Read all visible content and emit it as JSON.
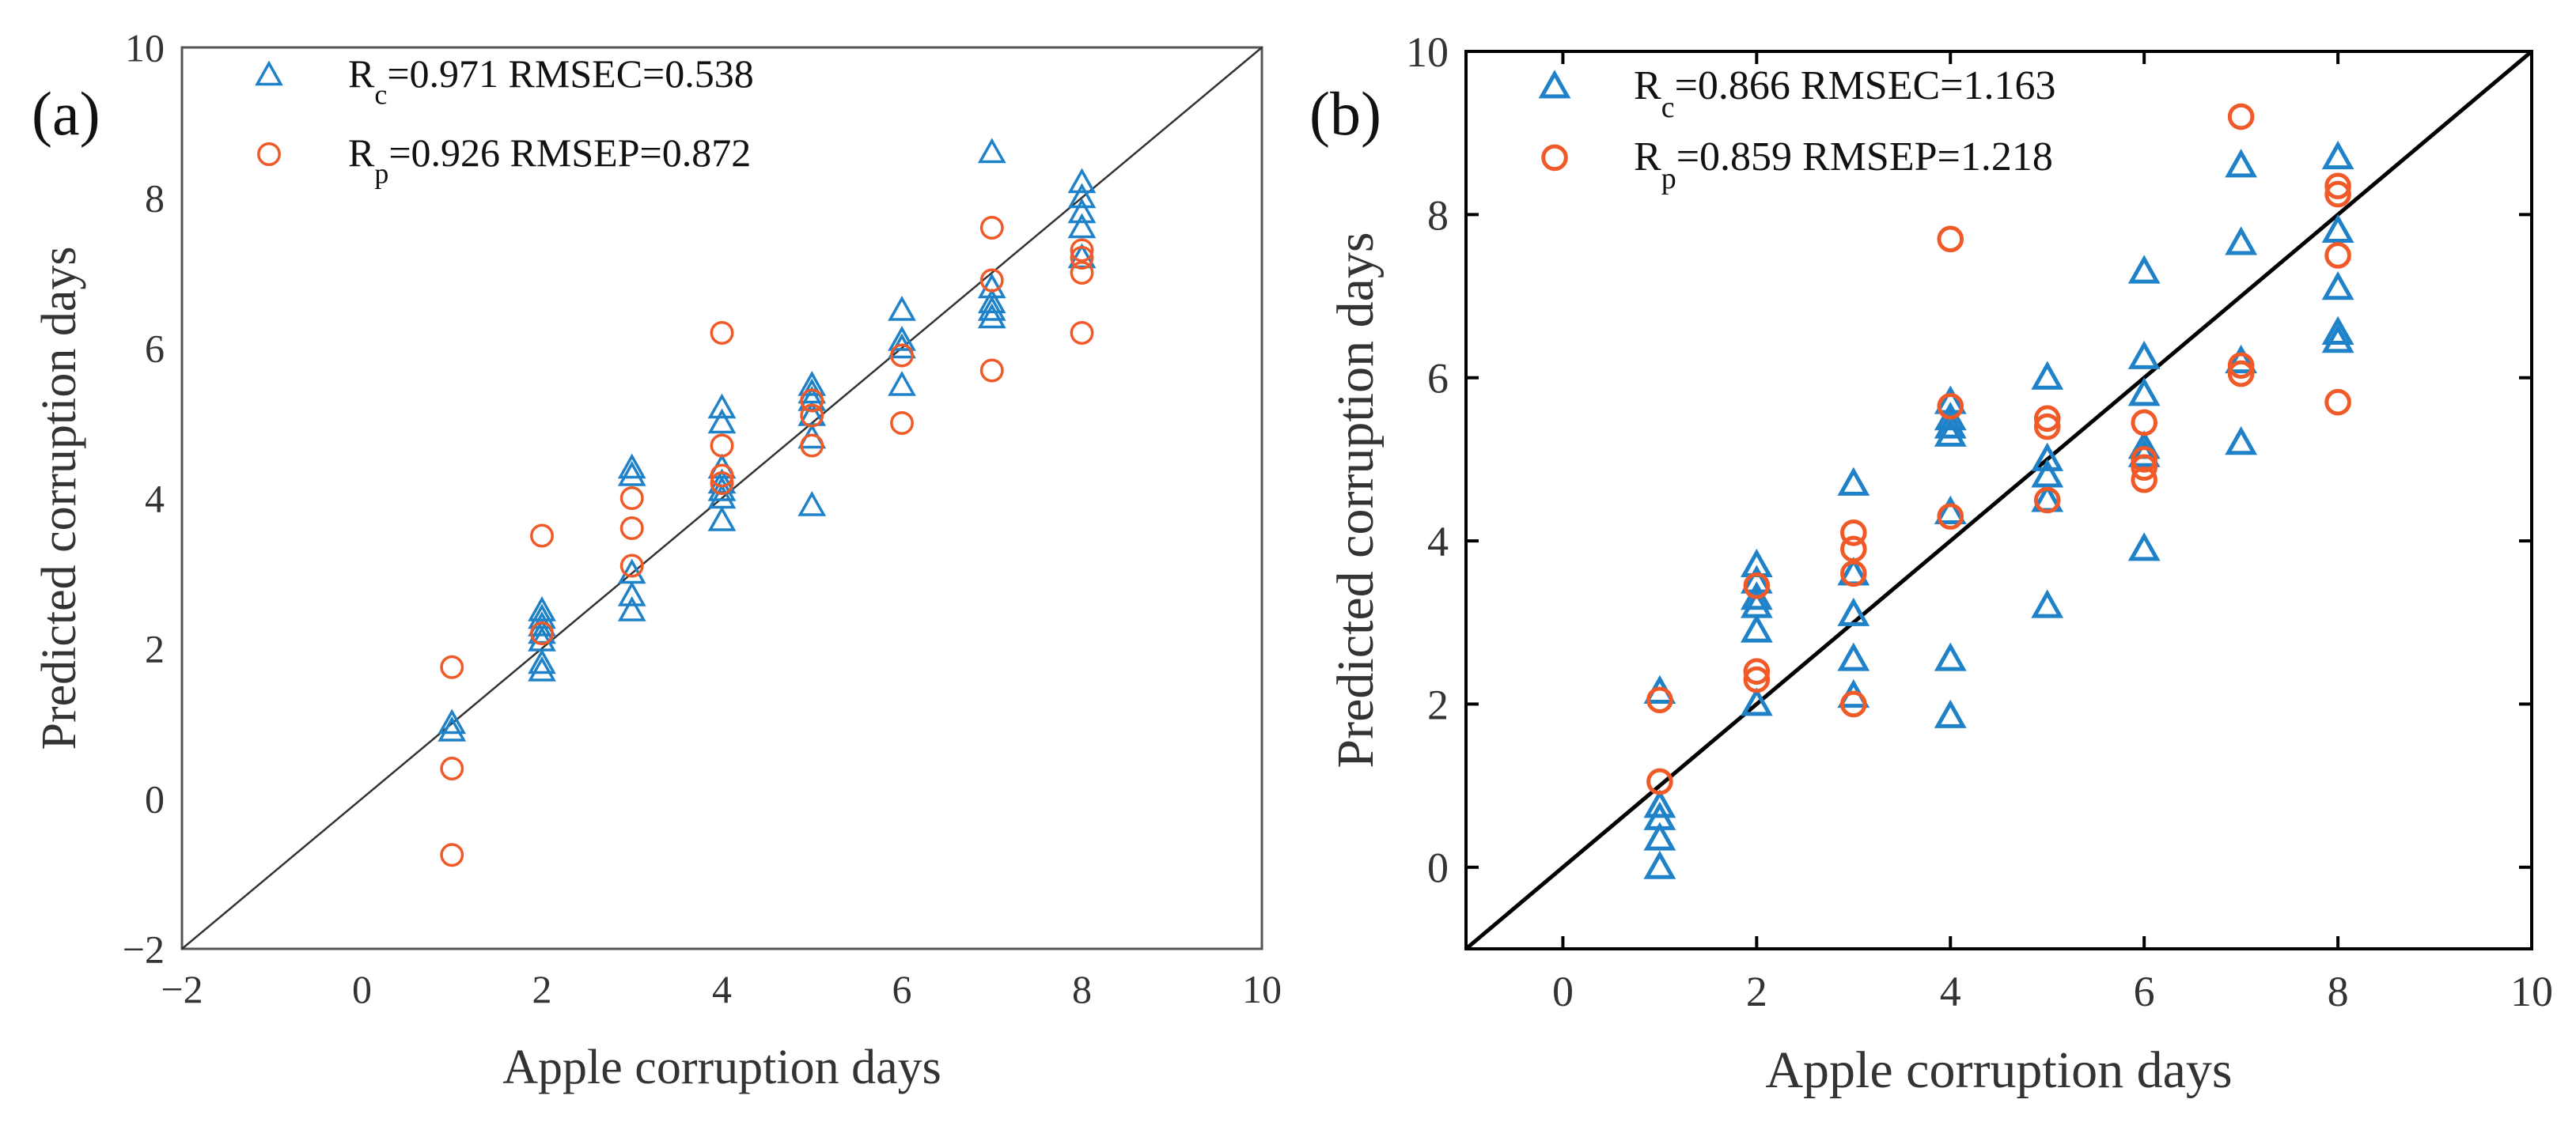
{
  "colors": {
    "calibration": "#1f82c8",
    "prediction": "#f05a28",
    "reference_line_a": "#333333",
    "reference_line_b": "#000000"
  },
  "chart_data": [
    {
      "type": "scatter",
      "panel_label": "(a)",
      "xlabel": "Apple corruption days",
      "ylabel": "Predicted corruption days",
      "xlim": [
        -2,
        10
      ],
      "ylim": [
        -2,
        10
      ],
      "xticks": [
        "−2",
        "0",
        "2",
        "4",
        "6",
        "8",
        "10"
      ],
      "yticks": [
        "−2",
        "0",
        "2",
        "4",
        "6",
        "8",
        "10"
      ],
      "reference_line": "y = x",
      "legend": [
        {
          "name": "calibration",
          "main": "R",
          "sub": "c",
          "rest": "=0.971 RMSEC=0.538",
          "marker": "triangle"
        },
        {
          "name": "prediction",
          "main": "R",
          "sub": "p",
          "rest": "=0.926 RMSEP=0.872",
          "marker": "circle"
        }
      ],
      "series": [
        {
          "name": "calibration",
          "marker": "triangle",
          "points": [
            [
              1,
              1.0
            ],
            [
              1,
              0.9
            ],
            [
              2,
              2.5
            ],
            [
              2,
              2.4
            ],
            [
              2,
              2.3
            ],
            [
              2,
              2.2
            ],
            [
              2,
              2.1
            ],
            [
              2,
              1.8
            ],
            [
              2,
              1.7
            ],
            [
              3,
              4.4
            ],
            [
              3,
              4.3
            ],
            [
              3,
              3.0
            ],
            [
              3,
              2.7
            ],
            [
              3,
              2.5
            ],
            [
              4,
              5.2
            ],
            [
              4,
              5.0
            ],
            [
              4,
              4.4
            ],
            [
              4,
              4.2
            ],
            [
              4,
              4.1
            ],
            [
              4,
              4.0
            ],
            [
              4,
              3.7
            ],
            [
              5,
              5.5
            ],
            [
              5,
              5.4
            ],
            [
              5,
              5.3
            ],
            [
              5,
              5.1
            ],
            [
              5,
              4.8
            ],
            [
              5,
              3.9
            ],
            [
              6,
              6.5
            ],
            [
              6,
              6.1
            ],
            [
              6,
              6.0
            ],
            [
              6,
              5.5
            ],
            [
              7,
              8.6
            ],
            [
              7,
              6.8
            ],
            [
              7,
              6.6
            ],
            [
              7,
              6.5
            ],
            [
              7,
              6.4
            ],
            [
              8,
              8.2
            ],
            [
              8,
              8.0
            ],
            [
              8,
              7.8
            ],
            [
              8,
              7.6
            ],
            [
              8,
              7.2
            ]
          ]
        },
        {
          "name": "prediction",
          "marker": "circle",
          "points": [
            [
              1,
              1.75
            ],
            [
              1,
              0.4
            ],
            [
              1,
              -0.75
            ],
            [
              2,
              3.5
            ],
            [
              2,
              2.2
            ],
            [
              3,
              4.0
            ],
            [
              3,
              3.6
            ],
            [
              3,
              3.1
            ],
            [
              4,
              6.2
            ],
            [
              4,
              4.7
            ],
            [
              4,
              4.3
            ],
            [
              4,
              4.2
            ],
            [
              5,
              5.3
            ],
            [
              5,
              5.1
            ],
            [
              5,
              4.7
            ],
            [
              6,
              5.9
            ],
            [
              6,
              5.0
            ],
            [
              7,
              7.6
            ],
            [
              7,
              6.9
            ],
            [
              7,
              5.7
            ],
            [
              8,
              7.3
            ],
            [
              8,
              7.2
            ],
            [
              8,
              7.0
            ],
            [
              8,
              6.2
            ]
          ]
        }
      ]
    },
    {
      "type": "scatter",
      "panel_label": "(b)",
      "xlabel": "Apple corruption days",
      "ylabel": "Predicted corruption days",
      "xlim": [
        -1,
        10
      ],
      "ylim": [
        -1,
        10
      ],
      "xticks": [
        "0",
        "2",
        "4",
        "6",
        "8",
        "10"
      ],
      "yticks": [
        "0",
        "2",
        "4",
        "6",
        "8",
        "10"
      ],
      "reference_line": "y = x",
      "legend": [
        {
          "name": "calibration",
          "main": "R",
          "sub": "c",
          "rest": "=0.866  RMSEC=1.163",
          "marker": "triangle"
        },
        {
          "name": "prediction",
          "main": "R",
          "sub": "p",
          "rest": "=0.859  RMSEP=1.218",
          "marker": "circle"
        }
      ],
      "series": [
        {
          "name": "calibration",
          "marker": "triangle",
          "points": [
            [
              1,
              2.15
            ],
            [
              1,
              0.75
            ],
            [
              1,
              0.6
            ],
            [
              1,
              0.35
            ],
            [
              1,
              0.0
            ],
            [
              2,
              3.7
            ],
            [
              2,
              3.5
            ],
            [
              2,
              3.3
            ],
            [
              2,
              3.2
            ],
            [
              2,
              2.9
            ],
            [
              2,
              2.0
            ],
            [
              3,
              4.7
            ],
            [
              3,
              3.6
            ],
            [
              3,
              3.1
            ],
            [
              3,
              2.55
            ],
            [
              3,
              2.1
            ],
            [
              4,
              5.7
            ],
            [
              4,
              5.5
            ],
            [
              4,
              5.4
            ],
            [
              4,
              5.3
            ],
            [
              4,
              4.35
            ],
            [
              4,
              2.55
            ],
            [
              4,
              1.85
            ],
            [
              5,
              6.0
            ],
            [
              5,
              5.0
            ],
            [
              5,
              4.8
            ],
            [
              5,
              4.5
            ],
            [
              5,
              3.2
            ],
            [
              6,
              7.3
            ],
            [
              6,
              6.25
            ],
            [
              6,
              5.8
            ],
            [
              6,
              5.15
            ],
            [
              6,
              5.05
            ],
            [
              6,
              3.9
            ],
            [
              7,
              8.6
            ],
            [
              7,
              7.65
            ],
            [
              7,
              6.2
            ],
            [
              7,
              5.2
            ],
            [
              8,
              8.7
            ],
            [
              8,
              7.8
            ],
            [
              8,
              7.1
            ],
            [
              8,
              6.55
            ],
            [
              8,
              6.45
            ]
          ]
        },
        {
          "name": "prediction",
          "marker": "circle",
          "points": [
            [
              1,
              2.05
            ],
            [
              1,
              1.05
            ],
            [
              2,
              3.45
            ],
            [
              2,
              2.4
            ],
            [
              2,
              2.3
            ],
            [
              3,
              4.1
            ],
            [
              3,
              3.9
            ],
            [
              3,
              3.6
            ],
            [
              3,
              2.0
            ],
            [
              4,
              7.7
            ],
            [
              4,
              5.65
            ],
            [
              4,
              4.3
            ],
            [
              5,
              5.5
            ],
            [
              5,
              5.4
            ],
            [
              5,
              4.5
            ],
            [
              6,
              5.45
            ],
            [
              6,
              5.0
            ],
            [
              6,
              4.9
            ],
            [
              6,
              4.75
            ],
            [
              7,
              9.2
            ],
            [
              7,
              6.15
            ],
            [
              7,
              6.05
            ],
            [
              8,
              8.35
            ],
            [
              8,
              8.25
            ],
            [
              8,
              7.5
            ],
            [
              8,
              5.7
            ]
          ]
        }
      ]
    }
  ]
}
